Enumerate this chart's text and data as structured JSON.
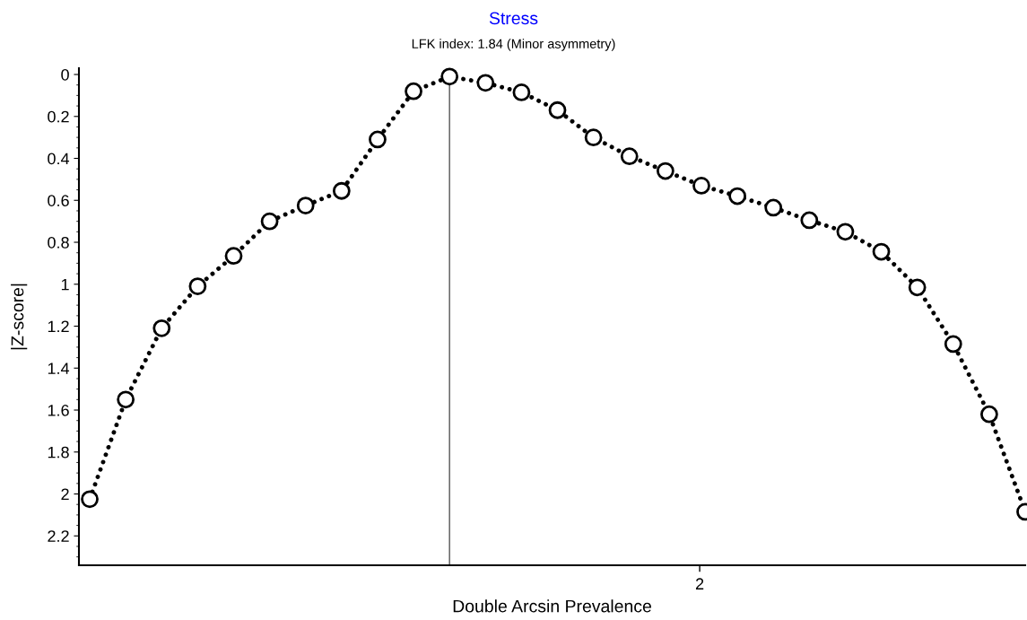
{
  "chart_data": {
    "type": "line",
    "title": "Stress",
    "subtitle": "LFK index: 1.84 (Minor asymmetry)",
    "xlabel": "Double Arcsin Prevalence",
    "ylabel": "|Z-score|",
    "categories": [
      null,
      null,
      null,
      null,
      null,
      null,
      null,
      null,
      null,
      null,
      null,
      null,
      null,
      null,
      null,
      null,
      null,
      null,
      null,
      null,
      null,
      null,
      null,
      null,
      null,
      null,
      null
    ],
    "series": [
      {
        "color": "#000000",
        "values": [
          2.025,
          1.55,
          1.21,
          1.01,
          0.865,
          0.7,
          0.625,
          0.555,
          0.31,
          0.08,
          0.01,
          0.04,
          0.085,
          0.17,
          0.3,
          0.39,
          0.46,
          0.53,
          0.58,
          0.635,
          0.695,
          0.75,
          0.845,
          1.015,
          1.285,
          1.62,
          2.085
        ]
      }
    ],
    "ylim": [
      2.34,
      -0.03
    ],
    "yticks": [
      0,
      0.2,
      0.4,
      0.6,
      0.8,
      1,
      1.2,
      1.4,
      1.6,
      1.8,
      2,
      2.2
    ],
    "annotations": [
      "2"
    ],
    "marker": "circle",
    "line_style": "dotted"
  }
}
